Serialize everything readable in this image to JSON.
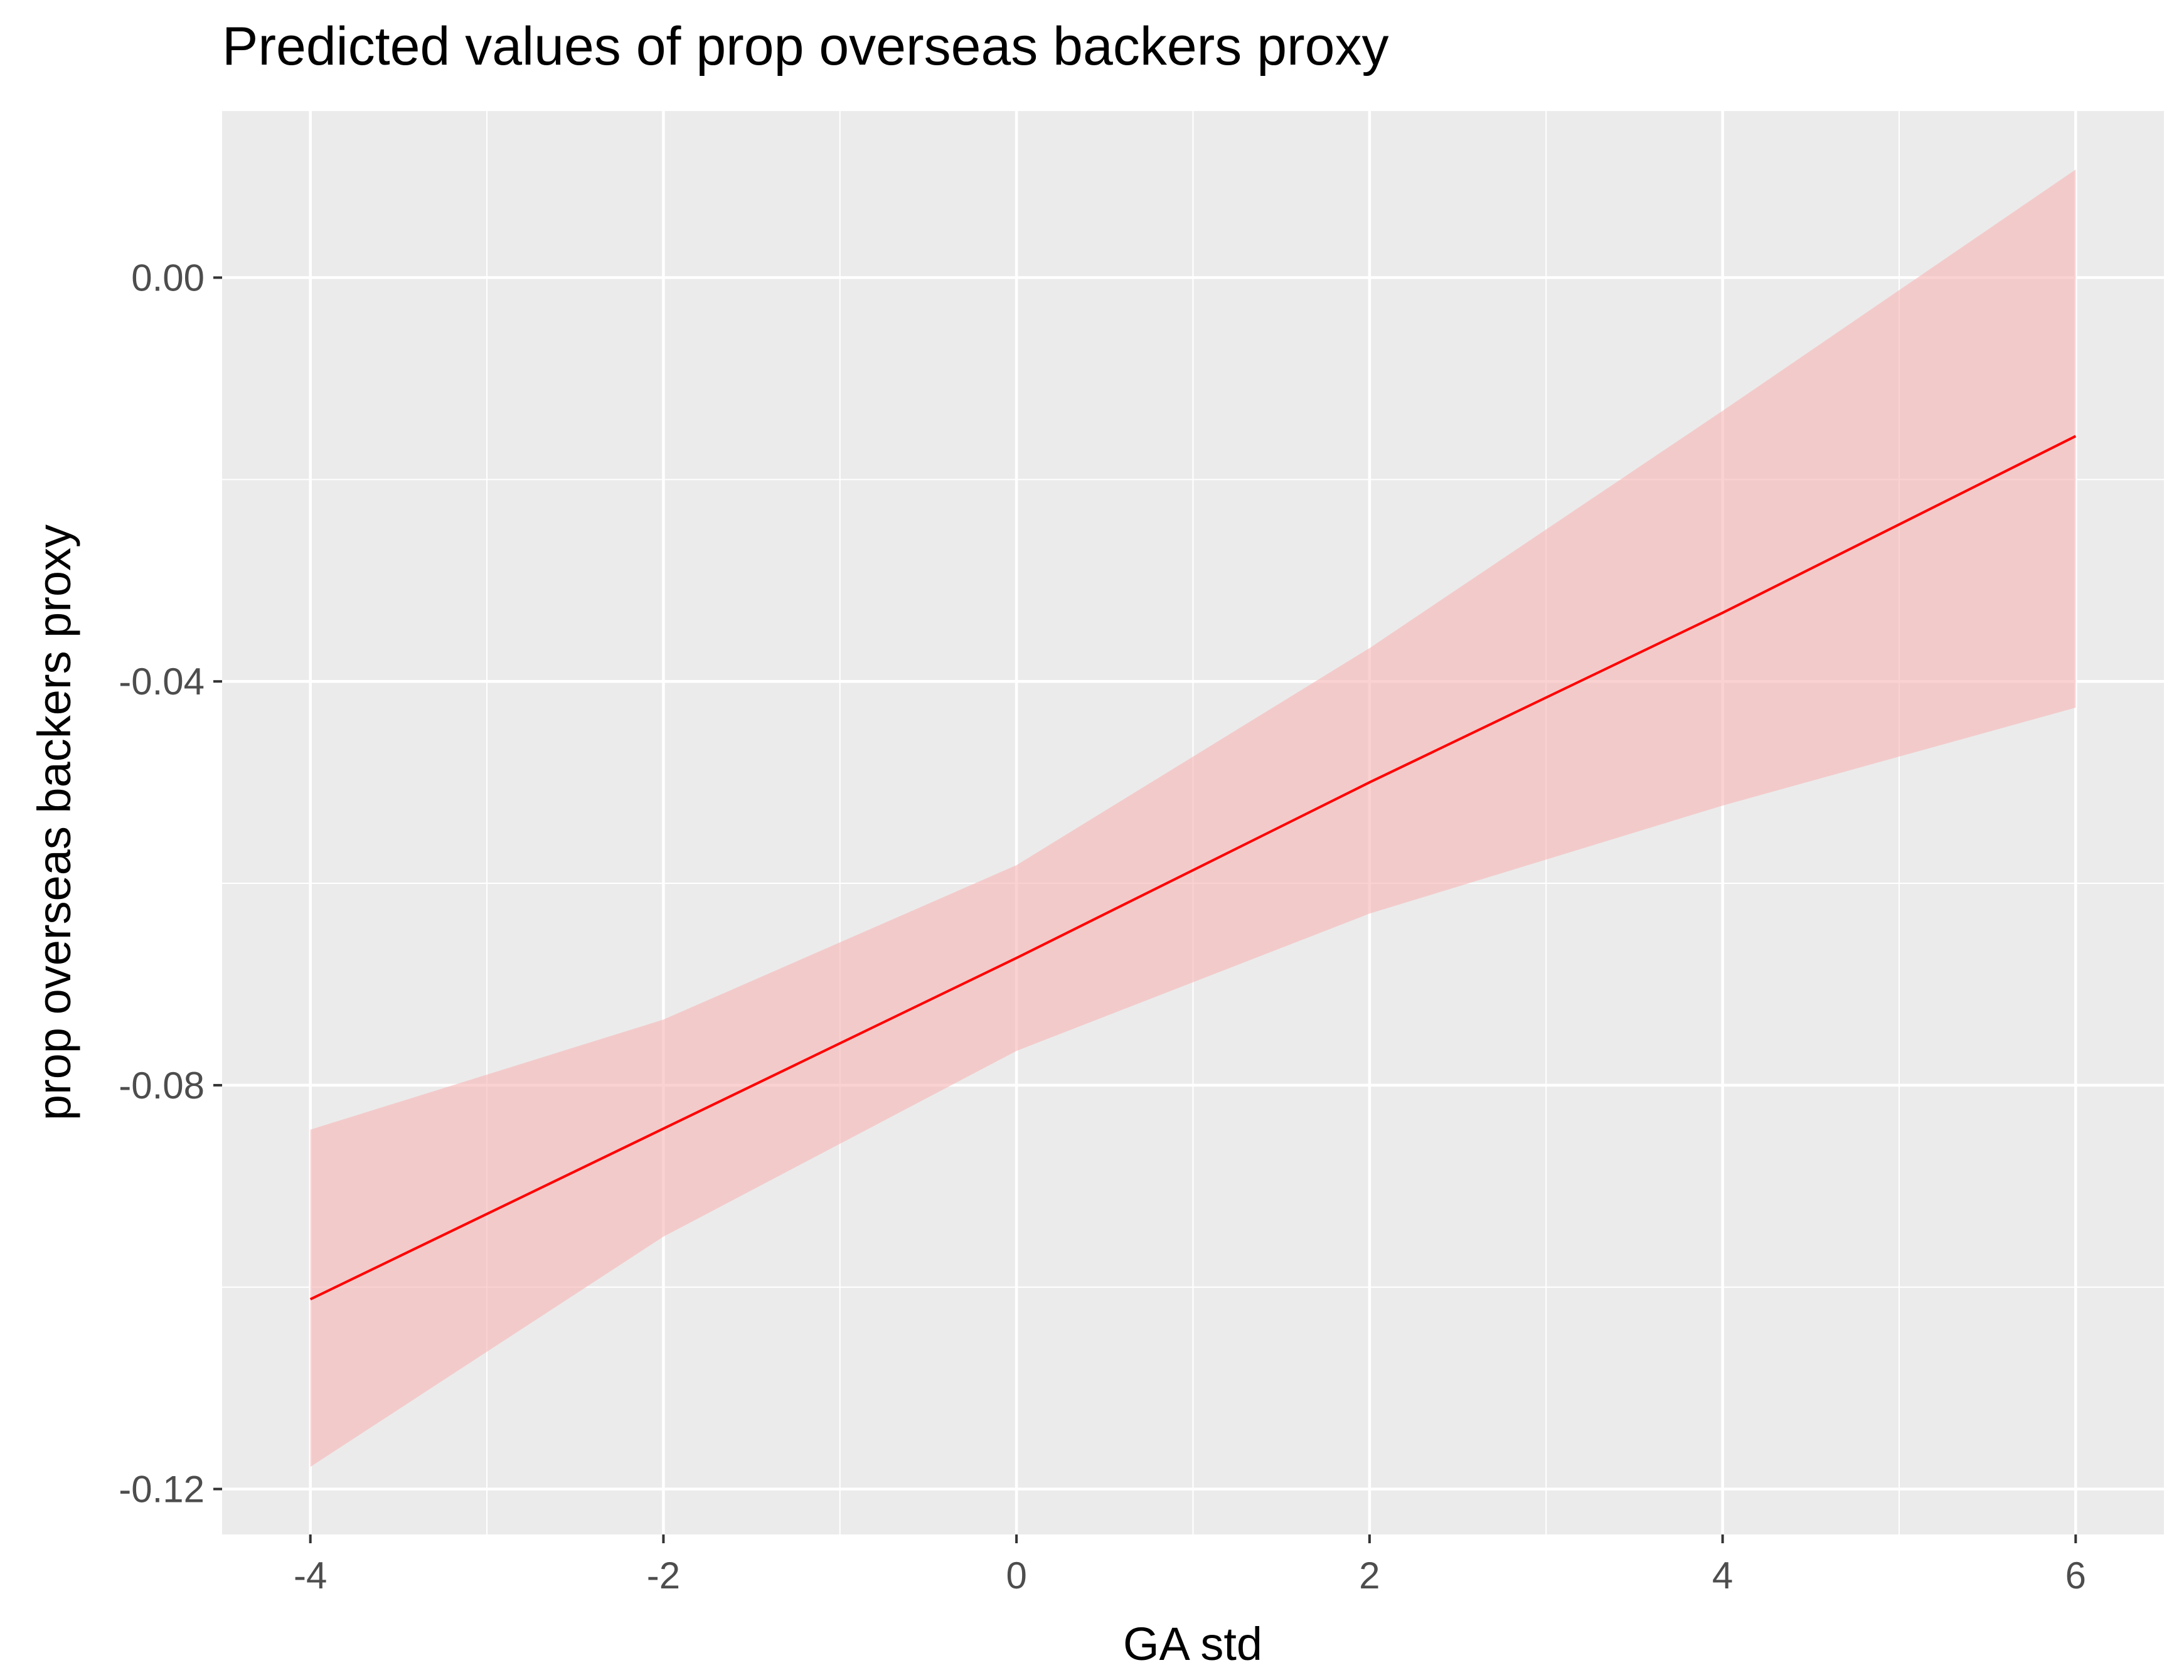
{
  "chart_data": {
    "type": "line",
    "title": "Predicted values of prop overseas backers proxy",
    "xlabel": "GA std",
    "ylabel": "prop overseas backers proxy",
    "xlim": [
      -4.5,
      6.5
    ],
    "ylim": [
      -0.1245,
      0.0165
    ],
    "x_ticks": [
      -4,
      -2,
      0,
      2,
      4,
      6
    ],
    "x_tick_labels": [
      "-4",
      "-2",
      "0",
      "2",
      "4",
      "6"
    ],
    "x_minor_ticks": [
      -3,
      -1,
      1,
      3,
      5
    ],
    "y_ticks": [
      -0.12,
      -0.08,
      -0.04,
      0.0
    ],
    "y_tick_labels": [
      "-0.12",
      "-0.08",
      "-0.04",
      "0.00"
    ],
    "y_minor_ticks": [
      -0.1,
      -0.06,
      -0.02
    ],
    "grid": true,
    "colors": {
      "panel_bg": "#ebebeb",
      "grid": "#ffffff",
      "line": "#ff0000",
      "ribbon": "#f8b4b4"
    },
    "series": [
      {
        "x": [
          -4,
          -2,
          0,
          2,
          4,
          6
        ],
        "y": [
          -0.1012,
          -0.0843,
          -0.0674,
          -0.05,
          -0.0332,
          -0.0157
        ],
        "lower": [
          -0.1178,
          -0.095,
          -0.0766,
          -0.063,
          -0.0523,
          -0.0426
        ],
        "upper": [
          -0.0844,
          -0.0735,
          -0.0582,
          -0.0367,
          -0.0132,
          0.0107
        ]
      }
    ]
  }
}
